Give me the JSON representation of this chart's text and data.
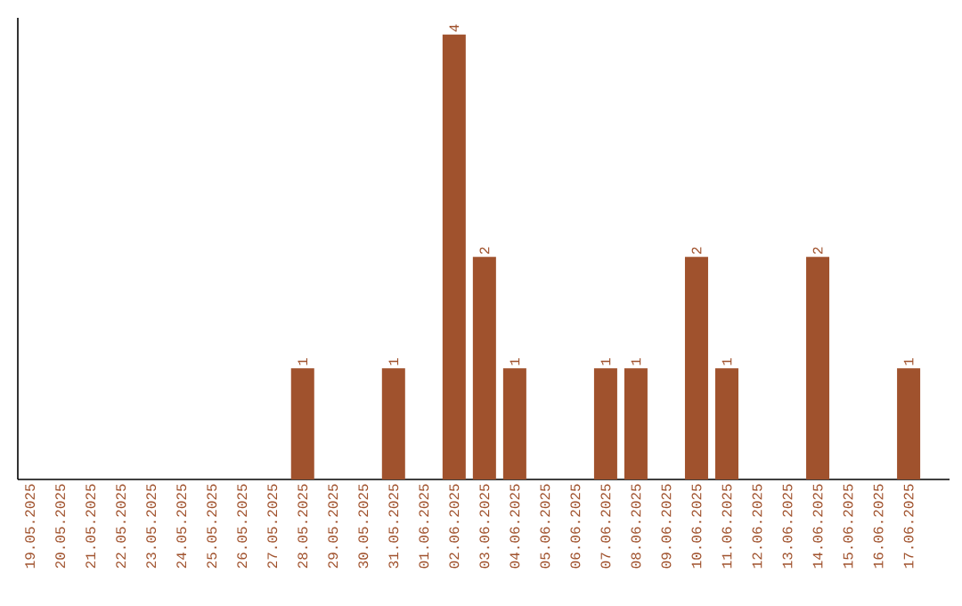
{
  "chart_data": {
    "type": "bar",
    "categories": [
      "19.05.2025",
      "20.05.2025",
      "21.05.2025",
      "22.05.2025",
      "23.05.2025",
      "24.05.2025",
      "25.05.2025",
      "26.05.2025",
      "27.05.2025",
      "28.05.2025",
      "29.05.2025",
      "30.05.2025",
      "31.05.2025",
      "01.06.2025",
      "02.06.2025",
      "03.06.2025",
      "04.06.2025",
      "05.06.2025",
      "06.06.2025",
      "07.06.2025",
      "08.06.2025",
      "09.06.2025",
      "10.06.2025",
      "11.06.2025",
      "12.06.2025",
      "13.06.2025",
      "14.06.2025",
      "15.06.2025",
      "16.06.2025",
      "17.06.2025"
    ],
    "values": [
      0,
      0,
      0,
      0,
      0,
      0,
      0,
      0,
      0,
      1,
      0,
      0,
      1,
      0,
      4,
      2,
      1,
      0,
      0,
      1,
      1,
      0,
      2,
      1,
      0,
      0,
      2,
      0,
      0,
      1
    ],
    "value_labels": [
      null,
      null,
      null,
      null,
      null,
      null,
      null,
      null,
      null,
      "1",
      null,
      null,
      "1",
      null,
      "4",
      "2",
      "1",
      null,
      null,
      "1",
      "1",
      null,
      "2",
      "1",
      null,
      null,
      "2",
      null,
      null,
      "1"
    ],
    "color": "#a0522d",
    "ylim": [
      0,
      4.15
    ]
  }
}
